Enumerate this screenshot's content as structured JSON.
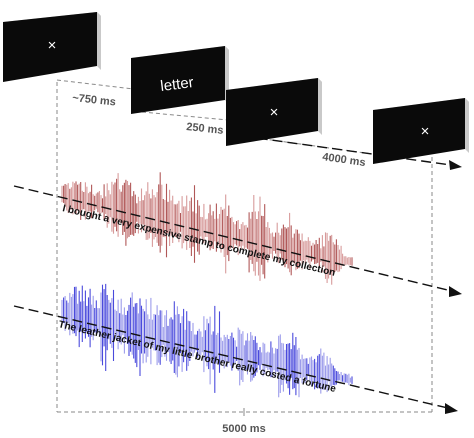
{
  "screens": [
    {
      "id": "fixation-1",
      "symbol": "×"
    },
    {
      "id": "word",
      "label": "letter"
    },
    {
      "id": "fixation-2",
      "symbol": "×"
    },
    {
      "id": "fixation-3",
      "symbol": "×"
    }
  ],
  "durations": {
    "first": "~750 ms",
    "second": "250 ms",
    "third": "4000 ms",
    "total": "5000 ms"
  },
  "sentences": {
    "top": "I bought a very expensive stamp to complete my collection",
    "bottom": "The leather jacket of my little brother really costed a fortune"
  },
  "colors": {
    "screen": "#0a0a0a",
    "screen_edge": "#c9c9c9",
    "red_wave": "#a33b3b",
    "red_wave_light": "#d08a8a",
    "blue_wave": "#2a2ad6",
    "blue_wave_light": "#8b8be8",
    "dashed_line": "#8a8a8a",
    "arrow": "#111111"
  }
}
